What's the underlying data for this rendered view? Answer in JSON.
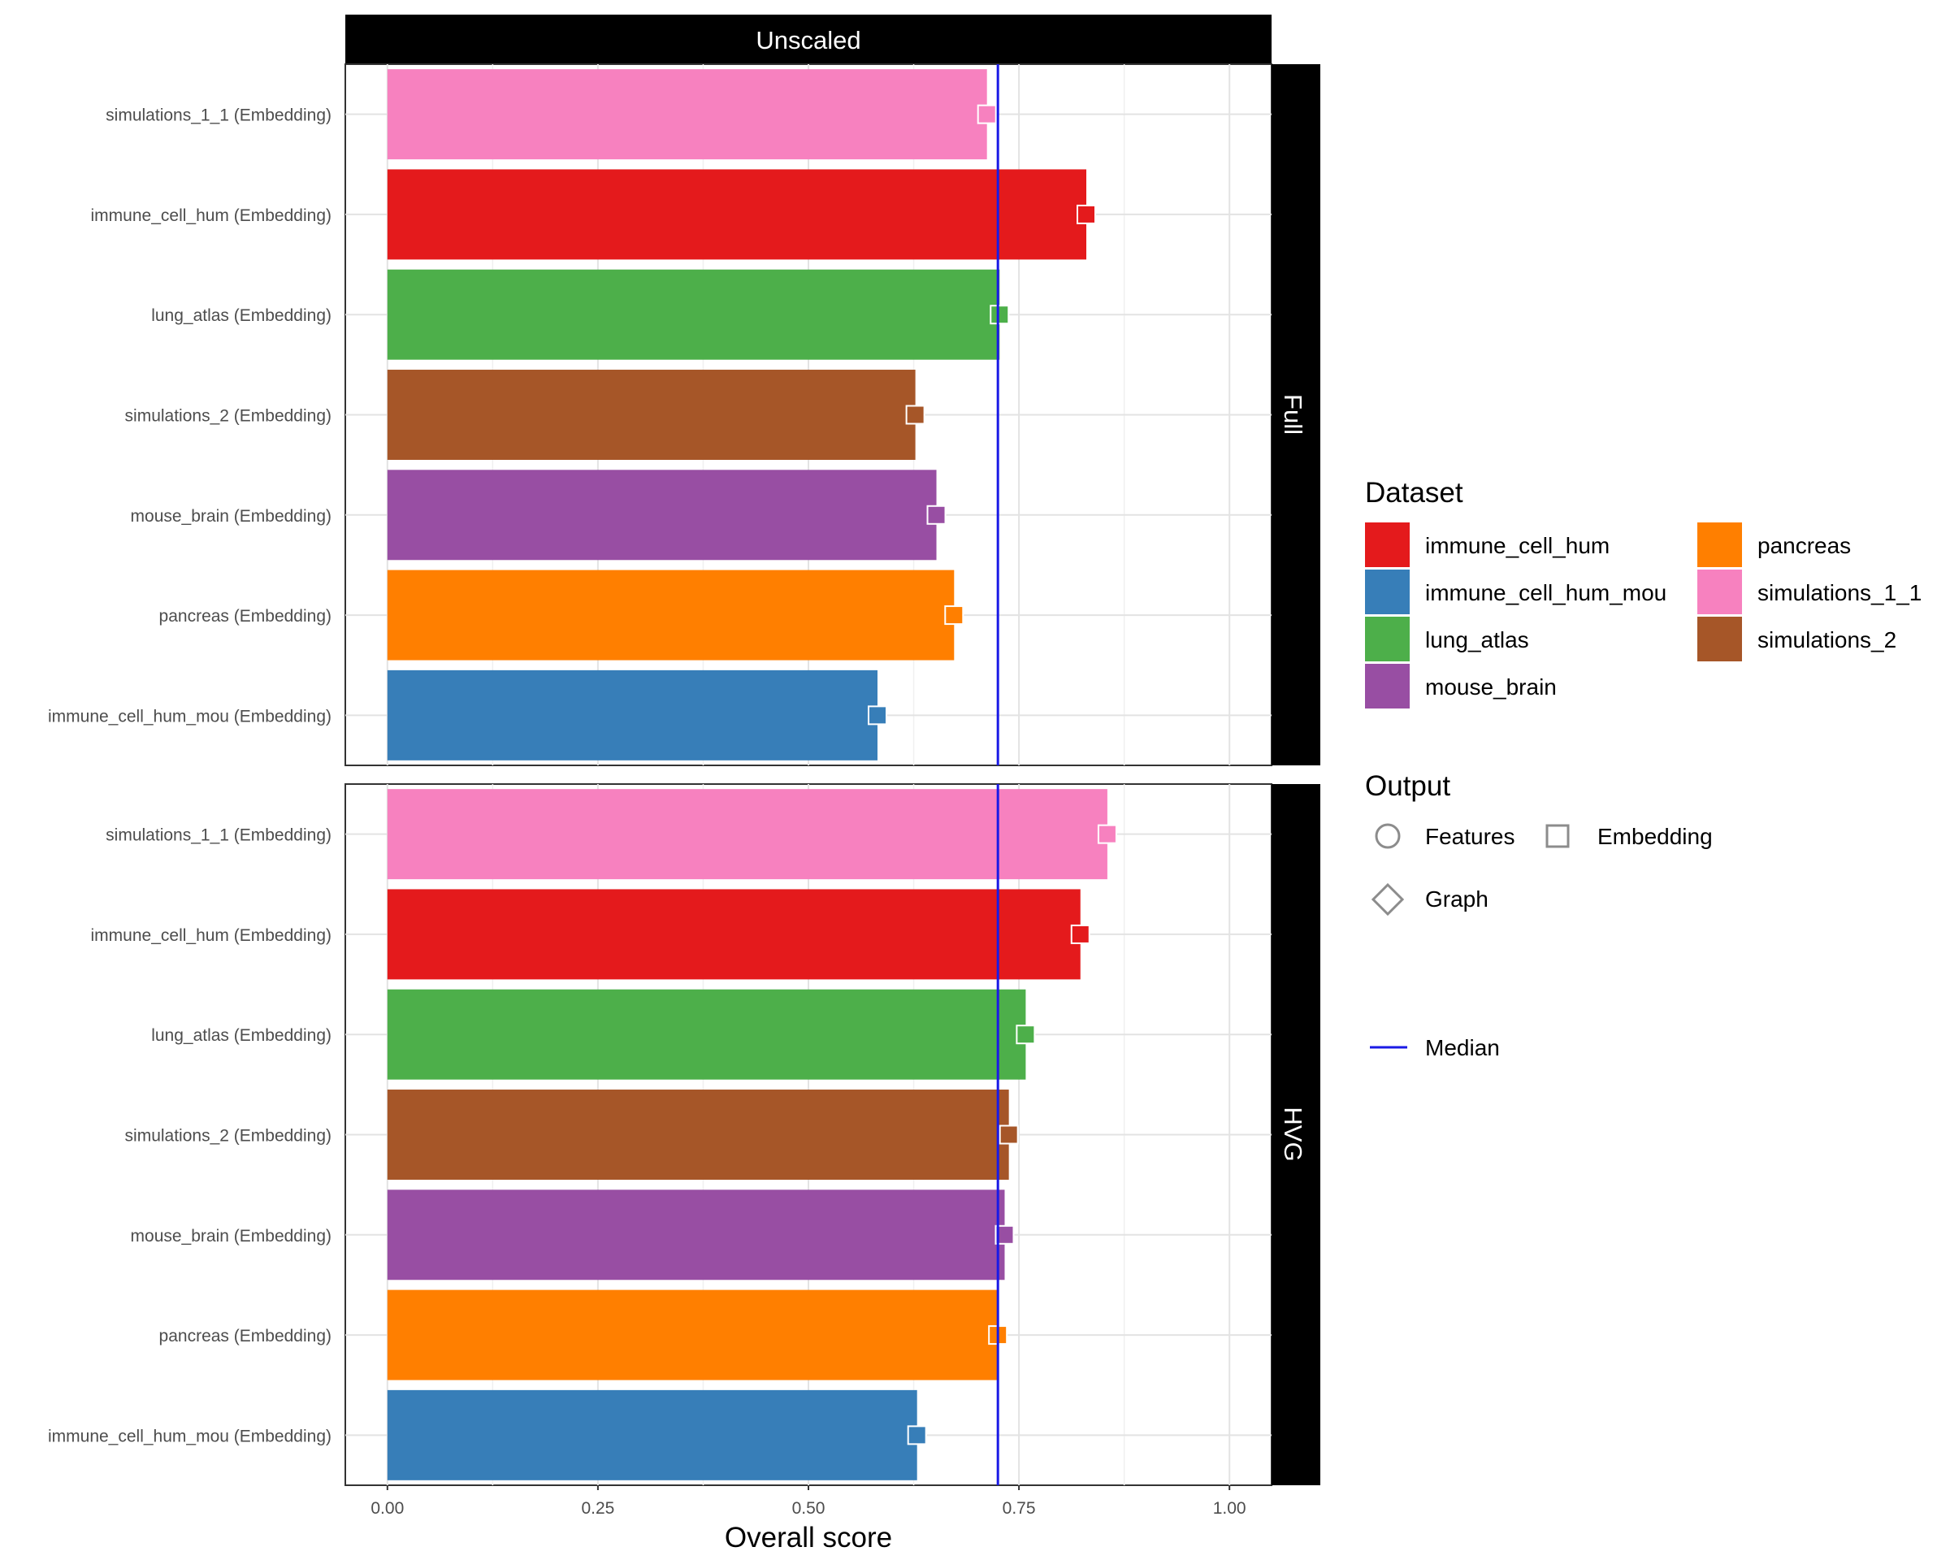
{
  "chart_data": {
    "type": "bar",
    "orientation": "horizontal",
    "column_strip": "Unscaled",
    "xlabel": "Overall score",
    "xlim": [
      -0.05,
      1.05
    ],
    "xticks": [
      0,
      0.25,
      0.5,
      0.75,
      1
    ],
    "xtick_labels": [
      "0.00",
      "0.25",
      "0.50",
      "0.75",
      "1.00"
    ],
    "median": 0.725,
    "categories": [
      "simulations_1_1 (Embedding)",
      "immune_cell_hum (Embedding)",
      "lung_atlas (Embedding)",
      "simulations_2 (Embedding)",
      "mouse_brain (Embedding)",
      "pancreas (Embedding)",
      "immune_cell_hum_mou (Embedding)"
    ],
    "bar_datasets": [
      "simulations_1_1",
      "immune_cell_hum",
      "lung_atlas",
      "simulations_2",
      "mouse_brain",
      "pancreas",
      "immune_cell_hum_mou"
    ],
    "panels": [
      {
        "strip": "Full",
        "values": [
          0.712,
          0.83,
          0.727,
          0.627,
          0.652,
          0.673,
          0.582
        ],
        "output": "Embedding"
      },
      {
        "strip": "HVG",
        "values": [
          0.855,
          0.823,
          0.758,
          0.738,
          0.733,
          0.725,
          0.629
        ],
        "output": "Embedding"
      }
    ]
  },
  "colors": {
    "immune_cell_hum": "#E41A1C",
    "immune_cell_hum_mou": "#377EB8",
    "lung_atlas": "#4DAF4A",
    "mouse_brain": "#984EA3",
    "pancreas": "#FF7F00",
    "simulations_1_1": "#F781BF",
    "simulations_2": "#A65628",
    "median": "#1A1AE6"
  },
  "legend": {
    "dataset_title": "Dataset",
    "datasets": [
      "immune_cell_hum",
      "immune_cell_hum_mou",
      "lung_atlas",
      "mouse_brain",
      "pancreas",
      "simulations_1_1",
      "simulations_2"
    ],
    "output_title": "Output",
    "outputs": [
      {
        "label": "Features",
        "shape": "circle"
      },
      {
        "label": "Embedding",
        "shape": "square"
      },
      {
        "label": "Graph",
        "shape": "diamond"
      }
    ],
    "median_label": "Median"
  }
}
